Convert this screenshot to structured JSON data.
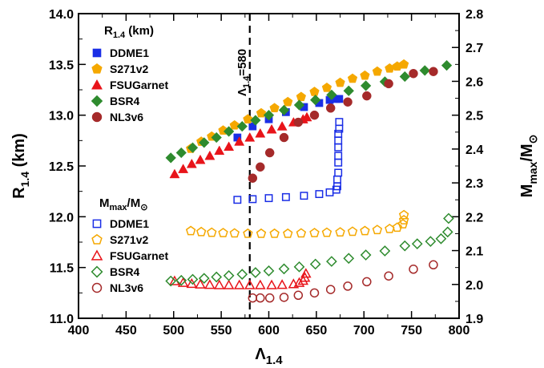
{
  "chart_data": {
    "type": "scatter",
    "xaxis": {
      "label_main": "Λ",
      "label_sub": "1.4",
      "range": [
        400,
        800
      ],
      "ticks": [
        400,
        450,
        500,
        550,
        600,
        650,
        700,
        750,
        800
      ]
    },
    "y_left": {
      "label_main": "R",
      "label_sub": "1.4",
      "label_tail": " (km)",
      "range": [
        11.0,
        14.0
      ],
      "ticks": [
        "11.0",
        "11.5",
        "12.0",
        "12.5",
        "13.0",
        "13.5",
        "14.0"
      ]
    },
    "y_right": {
      "label_main": "M",
      "label_sub": "max",
      "label_tail": "/M",
      "label_sub2": "⊙",
      "range": [
        1.9,
        2.8
      ],
      "ticks": [
        "1.9",
        "2.0",
        "2.1",
        "2.2",
        "2.3",
        "2.4",
        "2.5",
        "2.6",
        "2.7",
        "2.8"
      ]
    },
    "vline": {
      "x": 580,
      "label_main": "Λ",
      "label_sub": "1.4",
      "label_tail": "=580"
    },
    "legend_radius": {
      "title_main": "R",
      "title_sub": "1.4",
      "title_tail": " (km)",
      "position": "top-left"
    },
    "legend_mass": {
      "title_main": "M",
      "title_sub": "max",
      "title_tail": "/M",
      "title_sub2": "⊙",
      "position": "middle-left"
    },
    "radius_series": [
      {
        "name": "DDME1",
        "color": "#1a2ee6",
        "marker": "square",
        "filled": true,
        "points": [
          [
            567,
            12.78
          ],
          [
            583,
            12.89
          ],
          [
            600,
            12.96
          ],
          [
            618,
            13.03
          ],
          [
            637,
            13.08
          ],
          [
            653,
            13.12
          ],
          [
            664,
            13.15
          ],
          [
            671,
            13.16
          ],
          [
            674,
            13.16
          ]
        ]
      },
      {
        "name": "S271v2",
        "color": "#f5a800",
        "marker": "pentagon",
        "filled": true,
        "points": [
          [
            518,
            12.67
          ],
          [
            529,
            12.74
          ],
          [
            540,
            12.79
          ],
          [
            552,
            12.85
          ],
          [
            564,
            12.9
          ],
          [
            578,
            12.96
          ],
          [
            592,
            13.02
          ],
          [
            606,
            13.07
          ],
          [
            620,
            13.13
          ],
          [
            634,
            13.18
          ],
          [
            648,
            13.23
          ],
          [
            661,
            13.27
          ],
          [
            675,
            13.32
          ],
          [
            688,
            13.36
          ],
          [
            701,
            13.39
          ],
          [
            714,
            13.43
          ],
          [
            727,
            13.46
          ],
          [
            735,
            13.48
          ],
          [
            742,
            13.5
          ]
        ]
      },
      {
        "name": "FSUGarnet",
        "color": "#e8141a",
        "marker": "triangle",
        "filled": true,
        "points": [
          [
            501,
            12.42
          ],
          [
            510,
            12.47
          ],
          [
            519,
            12.52
          ],
          [
            528,
            12.56
          ],
          [
            538,
            12.6
          ],
          [
            548,
            12.65
          ],
          [
            558,
            12.69
          ],
          [
            569,
            12.74
          ],
          [
            580,
            12.78
          ],
          [
            591,
            12.82
          ],
          [
            603,
            12.86
          ],
          [
            614,
            12.89
          ],
          [
            626,
            12.93
          ],
          [
            636,
            12.96
          ],
          [
            640,
            12.98
          ]
        ]
      },
      {
        "name": "BSR4",
        "color": "#2e8b2e",
        "marker": "diamond",
        "filled": true,
        "points": [
          [
            497,
            12.58
          ],
          [
            508,
            12.63
          ],
          [
            520,
            12.68
          ],
          [
            532,
            12.73
          ],
          [
            545,
            12.78
          ],
          [
            558,
            12.84
          ],
          [
            572,
            12.89
          ],
          [
            586,
            12.95
          ],
          [
            600,
            13.0
          ],
          [
            616,
            13.05
          ],
          [
            632,
            13.1
          ],
          [
            649,
            13.15
          ],
          [
            666,
            13.2
          ],
          [
            684,
            13.24
          ],
          [
            702,
            13.29
          ],
          [
            722,
            13.33
          ],
          [
            743,
            13.38
          ],
          [
            764,
            13.44
          ],
          [
            787,
            13.49
          ]
        ]
      },
      {
        "name": "NL3v6",
        "color": "#a52a2a",
        "marker": "circle",
        "filled": true,
        "points": [
          [
            583,
            12.38
          ],
          [
            591,
            12.49
          ],
          [
            601,
            12.63
          ],
          [
            616,
            12.78
          ],
          [
            631,
            12.93
          ],
          [
            648,
            13.0
          ],
          [
            665,
            13.07
          ],
          [
            683,
            13.13
          ],
          [
            703,
            13.19
          ],
          [
            726,
            13.31
          ],
          [
            752,
            13.41
          ],
          [
            773,
            13.43
          ]
        ]
      }
    ],
    "mass_series": [
      {
        "name": "DDME1",
        "color": "#1a2ee6",
        "marker": "square",
        "filled": false,
        "points": [
          [
            567,
            2.25
          ],
          [
            583,
            2.252
          ],
          [
            600,
            2.255
          ],
          [
            618,
            2.258
          ],
          [
            637,
            2.262
          ],
          [
            653,
            2.267
          ],
          [
            664,
            2.272
          ],
          [
            671,
            2.28
          ],
          [
            672,
            2.29
          ],
          [
            672,
            2.31
          ],
          [
            673,
            2.33
          ],
          [
            673,
            2.36
          ],
          [
            673,
            2.38
          ],
          [
            673,
            2.405
          ],
          [
            673,
            2.425
          ],
          [
            673,
            2.445
          ],
          [
            674,
            2.46
          ],
          [
            674,
            2.48
          ]
        ]
      },
      {
        "name": "S271v2",
        "color": "#f5a800",
        "marker": "pentagon",
        "filled": false,
        "points": [
          [
            518,
            2.158
          ],
          [
            529,
            2.155
          ],
          [
            540,
            2.153
          ],
          [
            552,
            2.152
          ],
          [
            564,
            2.151
          ],
          [
            578,
            2.15
          ],
          [
            592,
            2.15
          ],
          [
            606,
            2.15
          ],
          [
            620,
            2.15
          ],
          [
            634,
            2.151
          ],
          [
            648,
            2.152
          ],
          [
            661,
            2.153
          ],
          [
            675,
            2.154
          ],
          [
            688,
            2.156
          ],
          [
            701,
            2.158
          ],
          [
            714,
            2.161
          ],
          [
            727,
            2.164
          ],
          [
            735,
            2.168
          ],
          [
            741,
            2.178
          ],
          [
            742,
            2.19
          ],
          [
            742,
            2.205
          ]
        ]
      },
      {
        "name": "FSUGarnet",
        "color": "#e8141a",
        "marker": "triangle",
        "filled": false,
        "points": [
          [
            501,
            2.01
          ],
          [
            510,
            2.005
          ],
          [
            519,
            2.002
          ],
          [
            528,
            2.0
          ],
          [
            538,
            1.999
          ],
          [
            548,
            1.998
          ],
          [
            558,
            1.998
          ],
          [
            569,
            1.998
          ],
          [
            580,
            1.998
          ],
          [
            591,
            1.998
          ],
          [
            603,
            1.998
          ],
          [
            614,
            1.999
          ],
          [
            626,
            2.001
          ],
          [
            632,
            2.005
          ],
          [
            636,
            2.011
          ],
          [
            638,
            2.02
          ],
          [
            639,
            2.032
          ]
        ]
      },
      {
        "name": "BSR4",
        "color": "#2e8b2e",
        "marker": "diamond",
        "filled": false,
        "points": [
          [
            497,
            2.01
          ],
          [
            508,
            2.012
          ],
          [
            520,
            2.015
          ],
          [
            532,
            2.018
          ],
          [
            545,
            2.022
          ],
          [
            558,
            2.026
          ],
          [
            572,
            2.03
          ],
          [
            586,
            2.035
          ],
          [
            600,
            2.04
          ],
          [
            616,
            2.046
          ],
          [
            632,
            2.052
          ],
          [
            649,
            2.06
          ],
          [
            666,
            2.068
          ],
          [
            684,
            2.077
          ],
          [
            702,
            2.087
          ],
          [
            722,
            2.099
          ],
          [
            743,
            2.114
          ],
          [
            756,
            2.12
          ],
          [
            770,
            2.127
          ],
          [
            781,
            2.135
          ],
          [
            788,
            2.155
          ],
          [
            789,
            2.195
          ]
        ]
      },
      {
        "name": "NL3v6",
        "color": "#a52a2a",
        "marker": "circle",
        "filled": false,
        "points": [
          [
            583,
            1.96
          ],
          [
            591,
            1.96
          ],
          [
            601,
            1.96
          ],
          [
            616,
            1.962
          ],
          [
            631,
            1.968
          ],
          [
            648,
            1.975
          ],
          [
            665,
            1.985
          ],
          [
            683,
            1.995
          ],
          [
            703,
            2.008
          ],
          [
            726,
            2.025
          ],
          [
            752,
            2.045
          ],
          [
            773,
            2.058
          ]
        ]
      }
    ]
  }
}
